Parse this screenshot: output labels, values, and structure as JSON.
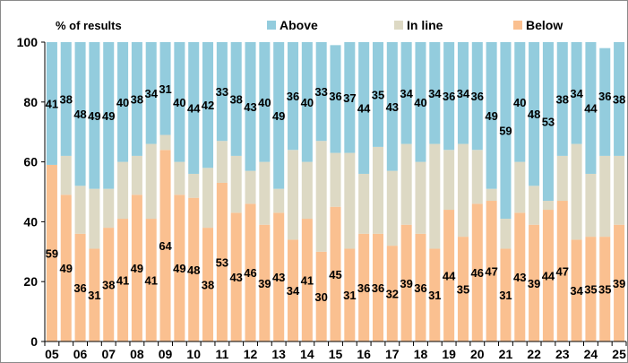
{
  "chart_data": {
    "type": "bar",
    "stacked": true,
    "title": "",
    "ylabel": "% of results",
    "xlabel": "",
    "ylim": [
      0,
      100
    ],
    "yticks": [
      0,
      20,
      40,
      60,
      80,
      100
    ],
    "xtick_labels": [
      "05",
      "06",
      "07",
      "08",
      "09",
      "10",
      "11",
      "12",
      "13",
      "14",
      "15",
      "16",
      "17",
      "18",
      "19",
      "20",
      "21",
      "22",
      "23",
      "24",
      "25"
    ],
    "categories": [
      "05a",
      "05b",
      "06a",
      "06b",
      "07a",
      "07b",
      "08a",
      "08b",
      "09a",
      "09b",
      "10a",
      "10b",
      "11a",
      "11b",
      "12a",
      "12b",
      "13a",
      "13b",
      "14a",
      "14b",
      "15a",
      "15b",
      "16a",
      "16b",
      "17a",
      "17b",
      "18a",
      "18b",
      "19a",
      "19b",
      "20a",
      "20b",
      "21a",
      "21b",
      "22a",
      "22b",
      "23a",
      "23b",
      "24a",
      "24b",
      "25a"
    ],
    "legend": {
      "placement": "top",
      "entries": [
        "Above",
        "In line",
        "Below"
      ]
    },
    "colors": {
      "Above": "#93ccdd",
      "In line": "#ddd9c4",
      "Below": "#fac090"
    },
    "series": [
      {
        "name": "Below",
        "values": [
          59,
          49,
          36,
          31,
          38,
          41,
          49,
          41,
          64,
          49,
          48,
          38,
          53,
          43,
          46,
          39,
          43,
          34,
          41,
          30,
          45,
          31,
          36,
          36,
          32,
          39,
          36,
          31,
          44,
          35,
          46,
          47,
          31,
          43,
          39,
          44,
          47,
          34,
          35,
          35,
          39
        ]
      },
      {
        "name": "In line",
        "values": [
          0,
          13,
          16,
          20,
          13,
          19,
          13,
          25,
          5,
          11,
          8,
          20,
          14,
          19,
          11,
          21,
          8,
          30,
          19,
          37,
          18,
          32,
          20,
          29,
          25,
          27,
          24,
          35,
          20,
          31,
          18,
          4,
          10,
          17,
          13,
          3,
          15,
          32,
          21,
          27,
          23
        ]
      },
      {
        "name": "Above",
        "values": [
          41,
          38,
          48,
          49,
          49,
          40,
          38,
          34,
          31,
          40,
          44,
          42,
          33,
          38,
          43,
          40,
          49,
          36,
          40,
          33,
          36,
          37,
          44,
          35,
          43,
          34,
          40,
          34,
          36,
          34,
          36,
          49,
          59,
          40,
          48,
          53,
          38,
          34,
          44,
          36,
          38
        ]
      }
    ],
    "data_labels": {
      "Below": [
        "59",
        "49",
        "36",
        "31",
        "38",
        "41",
        "49",
        "41",
        "64",
        "49",
        "48",
        "38",
        "53",
        "43",
        "46",
        "39",
        "43",
        "34",
        "41",
        "30",
        "45",
        "31",
        "36",
        "36",
        "32",
        "39",
        "36",
        "31",
        "44",
        "35",
        "46",
        "47",
        "31",
        "43",
        "39",
        "44",
        "47",
        "34",
        "35",
        "35",
        "39"
      ],
      "Above": [
        "41",
        "38",
        "48",
        "49",
        "49",
        "40",
        "38",
        "34",
        "31",
        "40",
        "44",
        "42",
        "33",
        "38",
        "43",
        "40",
        "49",
        "36",
        "40",
        "33",
        "36",
        "37",
        "44",
        "35",
        "43",
        "34",
        "40",
        "34",
        "36",
        "34",
        "36",
        "49",
        "59",
        "40",
        "48",
        "53",
        "38",
        "34",
        "44",
        "36",
        "38"
      ]
    }
  }
}
